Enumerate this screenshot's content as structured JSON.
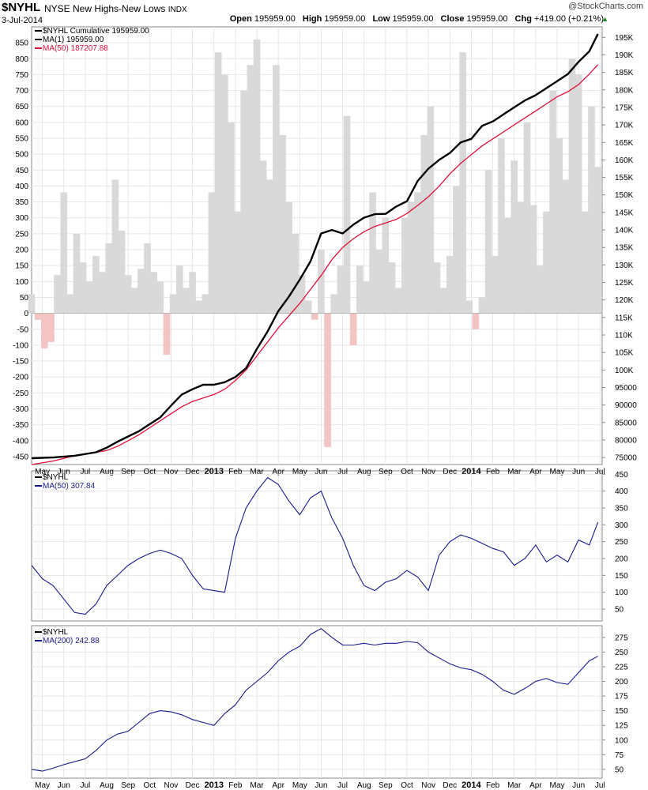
{
  "header": {
    "symbol": "$NYHL",
    "name": "NYSE New Highs-New Lows",
    "exchange": "INDX",
    "date": "3-Jul-2014",
    "credit": "@StockCharts.com",
    "open_label": "Open",
    "open": "195959.00",
    "high_label": "High",
    "high": "195959.00",
    "low_label": "Low",
    "low": "195959.00",
    "close_label": "Close",
    "close": "195959.00",
    "chg_label": "Chg",
    "chg": "+419.00 (+0.21%)"
  },
  "colors": {
    "cumulative": "#000000",
    "ma50_main": "#e0103a",
    "ma_lower": "#1a1a8c",
    "hist_positive": "#d9d9d9",
    "hist_negative": "#f2c4c4",
    "grid": "#e6e6e6",
    "accent_up": "#1a8a1a"
  },
  "x_axis": {
    "labels": [
      "May",
      "Jun",
      "Jul",
      "Aug",
      "Sep",
      "Oct",
      "Nov",
      "Dec",
      "2013",
      "Feb",
      "Mar",
      "Apr",
      "May",
      "Jun",
      "Jul",
      "Aug",
      "Sep",
      "Oct",
      "Nov",
      "Dec",
      "2014",
      "Feb",
      "Mar",
      "Apr",
      "May",
      "Jun",
      "Jul"
    ],
    "bold": [
      "2013",
      "2014"
    ]
  },
  "chart_data": [
    {
      "type": "area",
      "title": "$NYHL NYSE New Highs-New Lows INDX",
      "left_axis": {
        "range": [
          -475,
          900
        ],
        "ticks": [
          850,
          800,
          750,
          700,
          650,
          600,
          550,
          500,
          450,
          400,
          350,
          300,
          250,
          200,
          150,
          100,
          50,
          0,
          -50,
          -100,
          -150,
          -200,
          -250,
          -300,
          -350,
          -400,
          -450
        ]
      },
      "right_axis": {
        "range": [
          73000,
          198000
        ],
        "ticks": [
          "195K",
          "190K",
          "185K",
          "180K",
          "175K",
          "170K",
          "165K",
          "160K",
          "155K",
          "150K",
          "145K",
          "140K",
          "135K",
          "130K",
          "125K",
          "120K",
          "115K",
          "110K",
          "105K",
          "100K",
          "95000",
          "90000",
          "85000",
          "80000",
          "75000"
        ],
        "tick_values": [
          195000,
          190000,
          185000,
          180000,
          175000,
          170000,
          165000,
          160000,
          155000,
          150000,
          145000,
          140000,
          135000,
          130000,
          125000,
          120000,
          115000,
          110000,
          105000,
          100000,
          95000,
          90000,
          85000,
          80000,
          75000
        ]
      },
      "legend": [
        {
          "label": "$NYHL Cumulative 195959.00",
          "color": "#000000"
        },
        {
          "label": "MA(1) 195959.00",
          "color": "#000000"
        },
        {
          "label": "MA(50) 187207.88",
          "color": "#e0103a"
        }
      ],
      "series": [
        {
          "name": "$NYHL Cumulative",
          "axis": "right",
          "x": [
            0,
            1,
            2,
            3,
            3.5,
            4,
            4.5,
            5,
            5.5,
            6,
            6.5,
            7,
            7.5,
            8,
            8.5,
            9,
            9.5,
            10,
            10.5,
            11,
            11.5,
            12,
            12.5,
            13,
            13.5,
            14,
            14.5,
            15,
            15.5,
            16,
            16.5,
            17,
            17.5,
            18,
            18.5,
            19,
            19.5,
            20,
            20.5,
            21,
            21.5,
            22,
            22.5,
            23,
            23.5,
            24,
            24.5,
            25,
            25.5,
            26,
            26.4
          ],
          "values": [
            74800,
            75000,
            75500,
            76500,
            77800,
            79500,
            81000,
            82500,
            84500,
            86500,
            89800,
            93000,
            94500,
            95800,
            95800,
            96500,
            98000,
            100500,
            106000,
            111000,
            116800,
            121000,
            125800,
            131000,
            139000,
            140000,
            139000,
            141500,
            143500,
            144500,
            144600,
            146700,
            148200,
            154000,
            157500,
            160000,
            162000,
            165000,
            166000,
            169700,
            171000,
            173000,
            175000,
            177000,
            178500,
            180500,
            182500,
            184500,
            188000,
            191000,
            195959
          ]
        },
        {
          "name": "MA(50)",
          "axis": "right",
          "x": [
            0,
            1,
            2,
            3,
            3.5,
            4,
            4.5,
            5,
            5.5,
            6,
            6.5,
            7,
            7.5,
            8,
            8.5,
            9,
            9.5,
            10,
            10.5,
            11,
            11.5,
            12,
            12.5,
            13,
            13.5,
            14,
            14.5,
            15,
            15.5,
            16,
            16.5,
            17,
            17.5,
            18,
            18.5,
            19,
            19.5,
            20,
            20.5,
            21,
            21.5,
            22,
            22.5,
            23,
            23.5,
            24,
            24.5,
            25,
            25.5,
            26,
            26.4
          ],
          "values": [
            73000,
            74000,
            75500,
            76500,
            77000,
            78200,
            79800,
            81500,
            83500,
            85500,
            87500,
            89500,
            91000,
            92000,
            93000,
            94500,
            97000,
            100000,
            104000,
            108000,
            112000,
            115500,
            119000,
            123000,
            127000,
            131500,
            135000,
            137500,
            139500,
            141000,
            142000,
            143000,
            144700,
            147000,
            149500,
            152500,
            156000,
            159000,
            161500,
            164000,
            166000,
            168000,
            170000,
            172000,
            174000,
            176000,
            178000,
            179500,
            181500,
            184500,
            187207.88
          ]
        },
        {
          "name": "$NYHL",
          "axis": "left",
          "x": [
            0,
            0.3,
            0.6,
            0.9,
            1.2,
            1.5,
            1.8,
            2.1,
            2.4,
            2.7,
            3,
            3.3,
            3.6,
            3.9,
            4.2,
            4.5,
            4.8,
            5.1,
            5.4,
            5.7,
            6,
            6.3,
            6.6,
            6.9,
            7.2,
            7.5,
            7.8,
            8.1,
            8.4,
            8.7,
            9,
            9.3,
            9.6,
            9.9,
            10.2,
            10.5,
            10.8,
            11.1,
            11.4,
            11.7,
            12,
            12.3,
            12.6,
            12.9,
            13.2,
            13.5,
            13.8,
            14.1,
            14.4,
            14.7,
            15,
            15.3,
            15.6,
            15.9,
            16.2,
            16.5,
            16.8,
            17.1,
            17.4,
            17.7,
            18,
            18.3,
            18.6,
            18.9,
            19.2,
            19.5,
            19.8,
            20.1,
            20.4,
            20.7,
            21,
            21.3,
            21.6,
            21.9,
            22.2,
            22.5,
            22.8,
            23.1,
            23.4,
            23.7,
            24,
            24.3,
            24.6,
            24.9,
            25.2,
            25.5,
            25.8,
            26.1,
            26.4
          ],
          "values": [
            60,
            -20,
            -110,
            -90,
            120,
            380,
            60,
            250,
            160,
            100,
            180,
            130,
            220,
            420,
            260,
            120,
            80,
            140,
            220,
            130,
            100,
            -130,
            60,
            150,
            80,
            130,
            40,
            60,
            380,
            820,
            750,
            600,
            320,
            700,
            780,
            860,
            480,
            420,
            780,
            560,
            350,
            250,
            120,
            40,
            -20,
            200,
            -420,
            60,
            150,
            620,
            -100,
            150,
            100,
            380,
            200,
            300,
            160,
            80,
            300,
            350,
            380,
            560,
            650,
            160,
            80,
            180,
            400,
            820,
            40,
            -50,
            50,
            450,
            180,
            550,
            300,
            480,
            350,
            600,
            340,
            150,
            320,
            700,
            550,
            420,
            800,
            750,
            320,
            650,
            460
          ]
        }
      ]
    },
    {
      "type": "line",
      "title": "$NYHL",
      "y_axis": {
        "range": [
          15,
          460
        ],
        "ticks": [
          450,
          400,
          350,
          300,
          250,
          200,
          150,
          100,
          50
        ]
      },
      "legend": [
        {
          "label": "$NYHL",
          "color": "#000000"
        },
        {
          "label": "MA(50) 307.84",
          "color": "#1a1a8c"
        }
      ],
      "series": [
        {
          "name": "MA(50)",
          "x": [
            0,
            0.5,
            1,
            1.5,
            2,
            2.5,
            3,
            3.5,
            4,
            4.5,
            5,
            5.5,
            6,
            6.5,
            7,
            7.5,
            8,
            8.5,
            9,
            9.5,
            10,
            10.5,
            11,
            11.5,
            12,
            12.5,
            13,
            13.5,
            14,
            14.5,
            15,
            15.5,
            16,
            16.5,
            17,
            17.5,
            18,
            18.5,
            19,
            19.5,
            20,
            20.5,
            21,
            21.5,
            22,
            22.5,
            23,
            23.5,
            24,
            24.5,
            25,
            25.5,
            26,
            26.4
          ],
          "values": [
            180,
            140,
            120,
            80,
            40,
            35,
            65,
            120,
            150,
            180,
            200,
            215,
            225,
            215,
            200,
            150,
            110,
            105,
            100,
            260,
            350,
            400,
            440,
            420,
            370,
            330,
            380,
            400,
            320,
            260,
            180,
            120,
            105,
            130,
            140,
            165,
            145,
            105,
            210,
            250,
            270,
            260,
            245,
            230,
            220,
            180,
            200,
            240,
            190,
            210,
            190,
            255,
            240,
            307.84
          ]
        }
      ]
    },
    {
      "type": "line",
      "title": "$NYHL",
      "y_axis": {
        "range": [
          35,
          295
        ],
        "ticks": [
          275,
          250,
          225,
          200,
          175,
          150,
          125,
          100,
          75,
          50
        ]
      },
      "legend": [
        {
          "label": "$NYHL",
          "color": "#000000"
        },
        {
          "label": "MA(200) 242.88",
          "color": "#1a1a8c"
        }
      ],
      "series": [
        {
          "name": "MA(200)",
          "x": [
            0,
            0.5,
            1,
            1.5,
            2,
            2.5,
            3,
            3.5,
            4,
            4.5,
            5,
            5.5,
            6,
            6.5,
            7,
            7.5,
            8,
            8.5,
            9,
            9.5,
            10,
            10.5,
            11,
            11.5,
            12,
            12.5,
            13,
            13.5,
            14,
            14.5,
            15,
            15.5,
            16,
            16.5,
            17,
            17.5,
            18,
            18.5,
            19,
            19.5,
            20,
            20.5,
            21,
            21.5,
            22,
            22.5,
            23,
            23.5,
            24,
            24.5,
            25,
            25.5,
            26,
            26.4
          ],
          "values": [
            50,
            47,
            52,
            58,
            63,
            68,
            82,
            100,
            110,
            115,
            130,
            145,
            150,
            148,
            143,
            135,
            130,
            125,
            145,
            160,
            185,
            200,
            215,
            235,
            250,
            260,
            280,
            290,
            275,
            262,
            262,
            265,
            262,
            265,
            265,
            268,
            266,
            250,
            240,
            230,
            223,
            220,
            212,
            200,
            185,
            178,
            188,
            200,
            205,
            198,
            195,
            215,
            235,
            242.88
          ]
        }
      ]
    }
  ]
}
